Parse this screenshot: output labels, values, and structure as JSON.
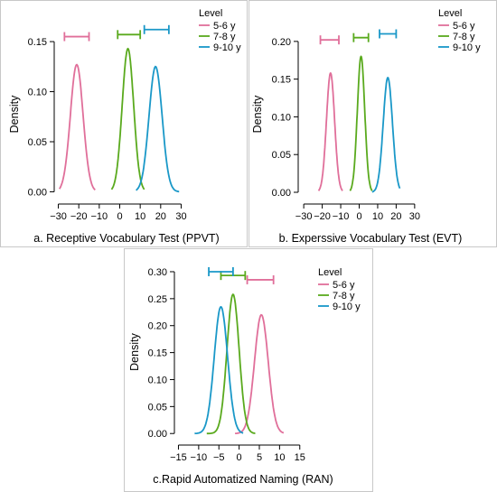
{
  "colors": {
    "5-6 y": "#e06f9a",
    "7-8 y": "#5aaa1e",
    "9-10 y": "#1a98c8"
  },
  "legend": {
    "title": "Level",
    "entries": [
      "5-6 y",
      "7-8 y",
      "9-10 y"
    ]
  },
  "chart_data": [
    {
      "type": "line",
      "caption": "a. Receptive Vocabulary Test (PPVT)",
      "ylabel": "Density",
      "xlabel": "",
      "xlim": [
        -32,
        32
      ],
      "ylim": [
        -0.005,
        0.16
      ],
      "xticks": [
        -30,
        -20,
        -10,
        0,
        10,
        20,
        30
      ],
      "yticks": [
        0.0,
        0.05,
        0.1,
        0.15
      ],
      "ytick_labels": [
        "0.00",
        "0.05",
        "0.10",
        "0.15"
      ],
      "grid": false,
      "legend_position": "top-right",
      "series": [
        {
          "name": "5-6 y",
          "density": {
            "mean": -21,
            "sd": 3.1,
            "peak": 0.127,
            "x_range": [
              -29.5,
              -12
            ]
          },
          "interval": {
            "low": -27,
            "high": -15,
            "y": 0.155
          }
        },
        {
          "name": "7-8 y",
          "density": {
            "mean": 4,
            "sd": 2.8,
            "peak": 0.143,
            "x_range": [
              -4,
              12
            ]
          },
          "interval": {
            "low": -1,
            "high": 10,
            "y": 0.157
          }
        },
        {
          "name": "9-10 y",
          "density": {
            "mean": 17.5,
            "sd": 3.2,
            "peak": 0.125,
            "x_range": [
              8,
              29
            ]
          },
          "interval": {
            "low": 12,
            "high": 24,
            "y": 0.162
          }
        }
      ]
    },
    {
      "type": "line",
      "caption": "b. Experssive Vocabulary Test (EVT)",
      "ylabel": "Density",
      "xlabel": "",
      "xlim": [
        -33,
        33
      ],
      "ylim": [
        -0.006,
        0.213
      ],
      "xticks": [
        -30,
        -20,
        -10,
        0,
        10,
        20,
        30
      ],
      "yticks": [
        0.0,
        0.05,
        0.1,
        0.15,
        0.2
      ],
      "ytick_labels": [
        "0.00",
        "0.05",
        "0.10",
        "0.15",
        "0.20"
      ],
      "grid": false,
      "legend_position": "top-right",
      "series": [
        {
          "name": "5-6 y",
          "density": {
            "mean": -15.5,
            "sd": 2.2,
            "peak": 0.158,
            "x_range": [
              -22,
              -9
            ]
          },
          "interval": {
            "low": -21,
            "high": -11,
            "y": 0.202
          }
        },
        {
          "name": "7-8 y",
          "density": {
            "mean": 1,
            "sd": 2.0,
            "peak": 0.18,
            "x_range": [
              -5,
              7
            ]
          },
          "interval": {
            "low": -3,
            "high": 5,
            "y": 0.205
          }
        },
        {
          "name": "9-10 y",
          "density": {
            "mean": 15.5,
            "sd": 2.5,
            "peak": 0.152,
            "x_range": [
              7,
              22
            ]
          },
          "interval": {
            "low": 11,
            "high": 20,
            "y": 0.21
          }
        }
      ]
    },
    {
      "type": "line",
      "caption": "c.Rapid  Automatized Naming (RAN)",
      "ylabel": "Density",
      "xlabel": "",
      "xlim": [
        -16,
        15.5
      ],
      "ylim": [
        -0.008,
        0.31
      ],
      "xticks": [
        -15,
        -10,
        -5,
        0,
        5,
        10,
        15
      ],
      "yticks": [
        0.0,
        0.05,
        0.1,
        0.15,
        0.2,
        0.25,
        0.3
      ],
      "ytick_labels": [
        "0.00",
        "0.05",
        "0.10",
        "0.15",
        "0.20",
        "0.25",
        "0.30"
      ],
      "grid": false,
      "legend_position": "top-right",
      "series": [
        {
          "name": "5-6 y",
          "density": {
            "mean": 5.5,
            "sd": 1.7,
            "peak": 0.22,
            "x_range": [
              -1,
              11
            ]
          },
          "interval": {
            "low": 2,
            "high": 8.5,
            "y": 0.285
          }
        },
        {
          "name": "7-8 y",
          "density": {
            "mean": -1.5,
            "sd": 1.5,
            "peak": 0.258,
            "x_range": [
              -8,
              4
            ]
          },
          "interval": {
            "low": -4.5,
            "high": 1.5,
            "y": 0.293
          }
        },
        {
          "name": "9-10 y",
          "density": {
            "mean": -4.5,
            "sd": 1.65,
            "peak": 0.235,
            "x_range": [
              -11,
              1
            ]
          },
          "interval": {
            "low": -7.5,
            "high": -1.5,
            "y": 0.3
          }
        }
      ]
    }
  ]
}
